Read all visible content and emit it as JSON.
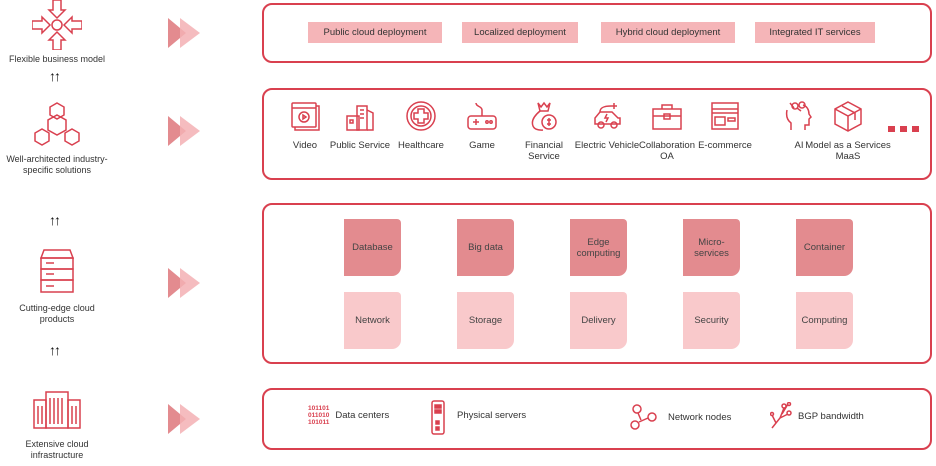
{
  "colors": {
    "accent": "#d9404f",
    "card_dark": "#e38b8f",
    "card_light": "#f9c9cb",
    "tag": "#f5b5b8"
  },
  "layers": [
    {
      "label": "Flexible business model",
      "icon": "arrows-converge-icon"
    },
    {
      "label": "Well-architected industry-specific solutions",
      "icon": "cubes-icon"
    },
    {
      "label": "Cutting-edge cloud products",
      "icon": "server-stack-icon"
    },
    {
      "label": "Extensive cloud infrastructure",
      "icon": "buildings-icon"
    }
  ],
  "deployment": [
    "Public cloud deployment",
    "Localized deployment",
    "Hybrid cloud deployment",
    "Integrated IT services"
  ],
  "industries": [
    {
      "label": "Video",
      "icon": "video-icon"
    },
    {
      "label": "Public Service",
      "icon": "city-icon"
    },
    {
      "label": "Healthcare",
      "icon": "medical-cross-icon"
    },
    {
      "label": "Game",
      "icon": "gamepad-icon"
    },
    {
      "label": "Financial Service",
      "icon": "money-bag-icon"
    },
    {
      "label": "Electric Vehicle",
      "icon": "electric-car-icon"
    },
    {
      "label": "Collaboration OA",
      "icon": "briefcase-icon"
    },
    {
      "label": "E-commerce",
      "icon": "storefront-icon"
    },
    {
      "label": "AI",
      "icon": "head-brain-icon"
    },
    {
      "label": "Model as a Services MaaS",
      "icon": "cube-icon"
    }
  ],
  "products_top": [
    "Database",
    "Big data",
    "Edge computing",
    "Micro-services",
    "Container"
  ],
  "products_bottom": [
    "Network",
    "Storage",
    "Delivery",
    "Security",
    "Computing"
  ],
  "infrastructure": [
    {
      "label": "Data centers",
      "icon": "binary-icon",
      "binary": [
        "101101",
        "011010",
        "101011"
      ]
    },
    {
      "label": "Physical servers",
      "icon": "server-icon"
    },
    {
      "label": "Network nodes",
      "icon": "network-nodes-icon"
    },
    {
      "label": "BGP bandwidth",
      "icon": "circuit-icon"
    }
  ]
}
